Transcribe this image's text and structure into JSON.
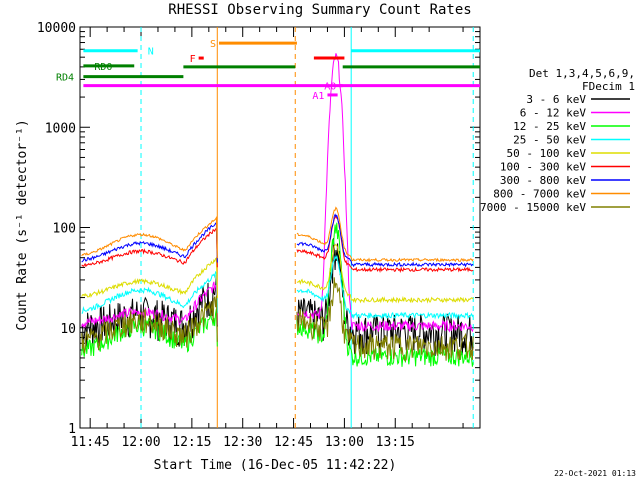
{
  "chart_data": {
    "type": "line",
    "title": "RHESSI Observing Summary Count Rates",
    "xlabel": "Start Time (16-Dec-05 11:42:22)",
    "ylabel": "Count Rate (s⁻¹ detector⁻¹)",
    "xlim_minutes": [
      -18,
      100
    ],
    "ylim": [
      1,
      10000
    ],
    "yscale": "log",
    "x_tick_labels": [
      "11:45",
      "12:00",
      "12:15",
      "12:30",
      "12:45",
      "13:00",
      "13:15"
    ],
    "x_tick_minutes": [
      -15,
      0,
      15,
      30,
      45,
      60,
      75
    ],
    "y_tick_labels": [
      "1",
      "10",
      "100",
      "1000",
      "10000"
    ],
    "y_tick_values": [
      1,
      10,
      100,
      1000,
      10000
    ],
    "legend_header": [
      "Det 1,3,4,5,6,9,",
      "FDecim 1"
    ],
    "series": [
      {
        "name": "3 - 6 keV",
        "color": "#000000",
        "base": 10,
        "amp": 1.4,
        "noise": 0.45,
        "flare": 55
      },
      {
        "name": "6 - 12 keV",
        "color": "#ff00ff",
        "base": 11,
        "amp": 1.3,
        "noise": 0.12,
        "flare": 5000
      },
      {
        "name": "12 - 25 keV",
        "color": "#00ff00",
        "base": 5.5,
        "amp": 1.9,
        "noise": 0.22,
        "flare": 90
      },
      {
        "name": "25 - 50 keV",
        "color": "#00ffff",
        "base": 14,
        "amp": 1.7,
        "noise": 0.06,
        "flare": 35
      },
      {
        "name": "50 - 100 keV",
        "color": "#dddd00",
        "base": 20,
        "amp": 1.45,
        "noise": 0.05,
        "flare": 45
      },
      {
        "name": "100 - 300 keV",
        "color": "#ff0000",
        "base": 40,
        "amp": 1.45,
        "noise": 0.04,
        "flare": 85
      },
      {
        "name": "300 - 800 keV",
        "color": "#0000ff",
        "base": 45,
        "amp": 1.55,
        "noise": 0.04,
        "flare": 80
      },
      {
        "name": "800 - 7000 keV",
        "color": "#ff8c00",
        "base": 50,
        "amp": 1.7,
        "noise": 0.03,
        "flare": 95
      },
      {
        "name": "7000 - 15000 keV",
        "color": "#808000",
        "base": 7,
        "amp": 1.7,
        "noise": 0.3,
        "flare": 20
      }
    ],
    "gaps": [
      [
        22.5,
        46
      ]
    ],
    "flag_bars": [
      {
        "label": "N",
        "color": "#00ffff",
        "y": 5800,
        "segments": [
          [
            -17,
            -1
          ],
          [
            62,
            100
          ]
        ]
      },
      {
        "label": "RD0",
        "color": "#008000",
        "y": 4100,
        "segments": [
          [
            -17,
            -2
          ]
        ]
      },
      {
        "label": "RD4",
        "color": "#008000",
        "y": 3200,
        "segments": [
          [
            -17,
            12.5
          ]
        ]
      },
      {
        "label": "",
        "color": "#008000",
        "y": 4000,
        "segments": [
          [
            12.5,
            45.5
          ],
          [
            59.5,
            100
          ]
        ]
      },
      {
        "label": "",
        "color": "#ff00ff",
        "y": 2600,
        "segments": [
          [
            -17,
            100
          ]
        ]
      },
      {
        "label": "F",
        "color": "#ff0000",
        "y": 4900,
        "segments": [
          [
            17,
            18.5
          ],
          [
            51,
            60
          ]
        ]
      },
      {
        "label": "S",
        "color": "#ff8c00",
        "y": 6900,
        "segments": [
          [
            23,
            46
          ]
        ]
      },
      {
        "label": "A1",
        "color": "#ff00ff",
        "y": 2100,
        "segments": [
          [
            55,
            58
          ]
        ]
      },
      {
        "label": "A0",
        "color": "#ff00ff",
        "y": 2600,
        "segments": [
          [
            58.5,
            59.5
          ]
        ]
      }
    ],
    "vlines": [
      {
        "minute": 0,
        "color": "#00ffff",
        "dashed": true
      },
      {
        "minute": 22.5,
        "color": "#ff8c00",
        "dashed": false
      },
      {
        "minute": 45.5,
        "color": "#ff8c00",
        "dashed": true
      },
      {
        "minute": 62,
        "color": "#00ffff",
        "dashed": false
      },
      {
        "minute": 98,
        "color": "#00ffff",
        "dashed": true
      }
    ],
    "grid": false,
    "legend_position": "right"
  },
  "footer": {
    "date_stamp": "22-Oct-2021 01:13"
  },
  "labels": {
    "ylabel_line": "Count Rate (s",
    "ylabel_sup": "-1",
    "ylabel_mid": " detector",
    "ylabel_end": ")"
  }
}
